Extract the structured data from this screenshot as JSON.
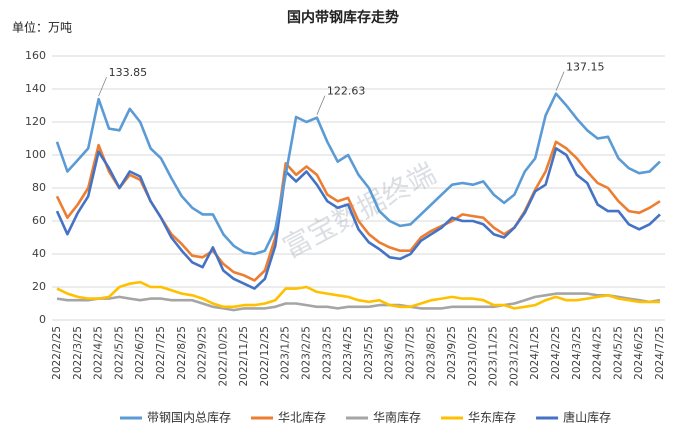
{
  "chart_data": {
    "type": "line",
    "title": "国内带钢库存走势",
    "unit_label": "单位：万吨",
    "watermark": "富宝数据终端",
    "categories": [
      "2022/2/25",
      null,
      "2022/3/25",
      null,
      "2022/4/25",
      null,
      "2022/5/25",
      null,
      "2022/6/25",
      null,
      "2022/7/25",
      null,
      "2022/8/25",
      null,
      "2022/9/25",
      null,
      "2022/10/25",
      null,
      "2022/11/25",
      null,
      "2022/12/25",
      null,
      "2023/1/25",
      null,
      "2023/2/25",
      null,
      "2023/3/25",
      null,
      "2023/4/25",
      null,
      "2023/5/25",
      null,
      "2023/6/25",
      null,
      "2023/7/25",
      null,
      "2023/8/25",
      null,
      "2023/9/25",
      null,
      "2023/10/25",
      null,
      "2023/11/25",
      null,
      "2023/12/25",
      null,
      "2024/1/25",
      null,
      "2024/2/25",
      null,
      "2024/3/25",
      null,
      "2024/4/25",
      null,
      "2024/5/25",
      null,
      "2024/6/25",
      null,
      "2024/7/25"
    ],
    "series": [
      {
        "name": "带钢国内总库存",
        "color": "#5b9bd5",
        "values": [
          108,
          90,
          97,
          104,
          133.85,
          116,
          115,
          128,
          120,
          104,
          98,
          86,
          75,
          68,
          64,
          64,
          52,
          45,
          41,
          40,
          42,
          55,
          88,
          123,
          120,
          122.63,
          108,
          96,
          100,
          88,
          80,
          66,
          60,
          57,
          58,
          64,
          70,
          76,
          82,
          83,
          82,
          84,
          76,
          71,
          76,
          90,
          98,
          124,
          137.15,
          130,
          122,
          115,
          110,
          111,
          98,
          92,
          89,
          90,
          96
        ]
      },
      {
        "name": "华北库存",
        "color": "#ed7d31",
        "values": [
          75,
          62,
          70,
          80,
          106,
          90,
          80,
          88,
          85,
          72,
          62,
          52,
          46,
          39,
          38,
          42,
          34,
          29,
          27,
          24,
          30,
          50,
          95,
          88,
          93,
          88,
          76,
          72,
          74,
          60,
          52,
          47,
          44,
          42,
          42,
          50,
          54,
          57,
          60,
          64,
          63,
          62,
          56,
          52,
          56,
          66,
          79,
          90,
          108,
          104,
          98,
          90,
          83,
          80,
          72,
          66,
          65,
          68,
          72
        ]
      },
      {
        "name": "华南库存",
        "color": "#a5a5a5",
        "values": [
          13,
          12,
          12,
          12,
          13,
          13,
          14,
          13,
          12,
          13,
          13,
          12,
          12,
          12,
          10,
          8,
          7,
          6,
          7,
          7,
          7,
          8,
          10,
          10,
          9,
          8,
          8,
          7,
          8,
          8,
          8,
          9,
          9,
          9,
          8,
          7,
          7,
          7,
          8,
          8,
          8,
          8,
          8,
          9,
          10,
          12,
          14,
          15,
          16,
          16,
          16,
          16,
          15,
          15,
          14,
          13,
          12,
          11,
          12
        ]
      },
      {
        "name": "华东库存",
        "color": "#ffc000",
        "values": [
          19,
          16,
          14,
          13,
          13,
          14,
          20,
          22,
          23,
          20,
          20,
          18,
          16,
          15,
          13,
          10,
          8,
          8,
          9,
          9,
          10,
          12,
          19,
          19,
          20,
          17,
          16,
          15,
          14,
          12,
          11,
          12,
          9,
          8,
          8,
          10,
          12,
          13,
          14,
          13,
          13,
          12,
          9,
          9,
          7,
          8,
          9,
          12,
          14,
          12,
          12,
          13,
          14,
          15,
          13,
          12,
          11,
          11,
          11
        ]
      },
      {
        "name": "唐山库存",
        "color": "#4472c4",
        "values": [
          66,
          52,
          65,
          75,
          102,
          92,
          80,
          90,
          87,
          72,
          62,
          50,
          42,
          35,
          32,
          44,
          30,
          25,
          22,
          19,
          25,
          45,
          90,
          84,
          90,
          82,
          72,
          68,
          70,
          55,
          47,
          43,
          38,
          37,
          40,
          48,
          52,
          56,
          62,
          60,
          60,
          58,
          52,
          50,
          56,
          65,
          78,
          82,
          104,
          100,
          88,
          83,
          70,
          66,
          66,
          58,
          55,
          58,
          64
        ]
      }
    ],
    "annotations": [
      "133.85",
      "122.63",
      "137.15"
    ],
    "ylim": [
      0,
      160
    ],
    "yticks": [
      0,
      20,
      40,
      60,
      80,
      100,
      120,
      140,
      160
    ],
    "grid": true
  }
}
